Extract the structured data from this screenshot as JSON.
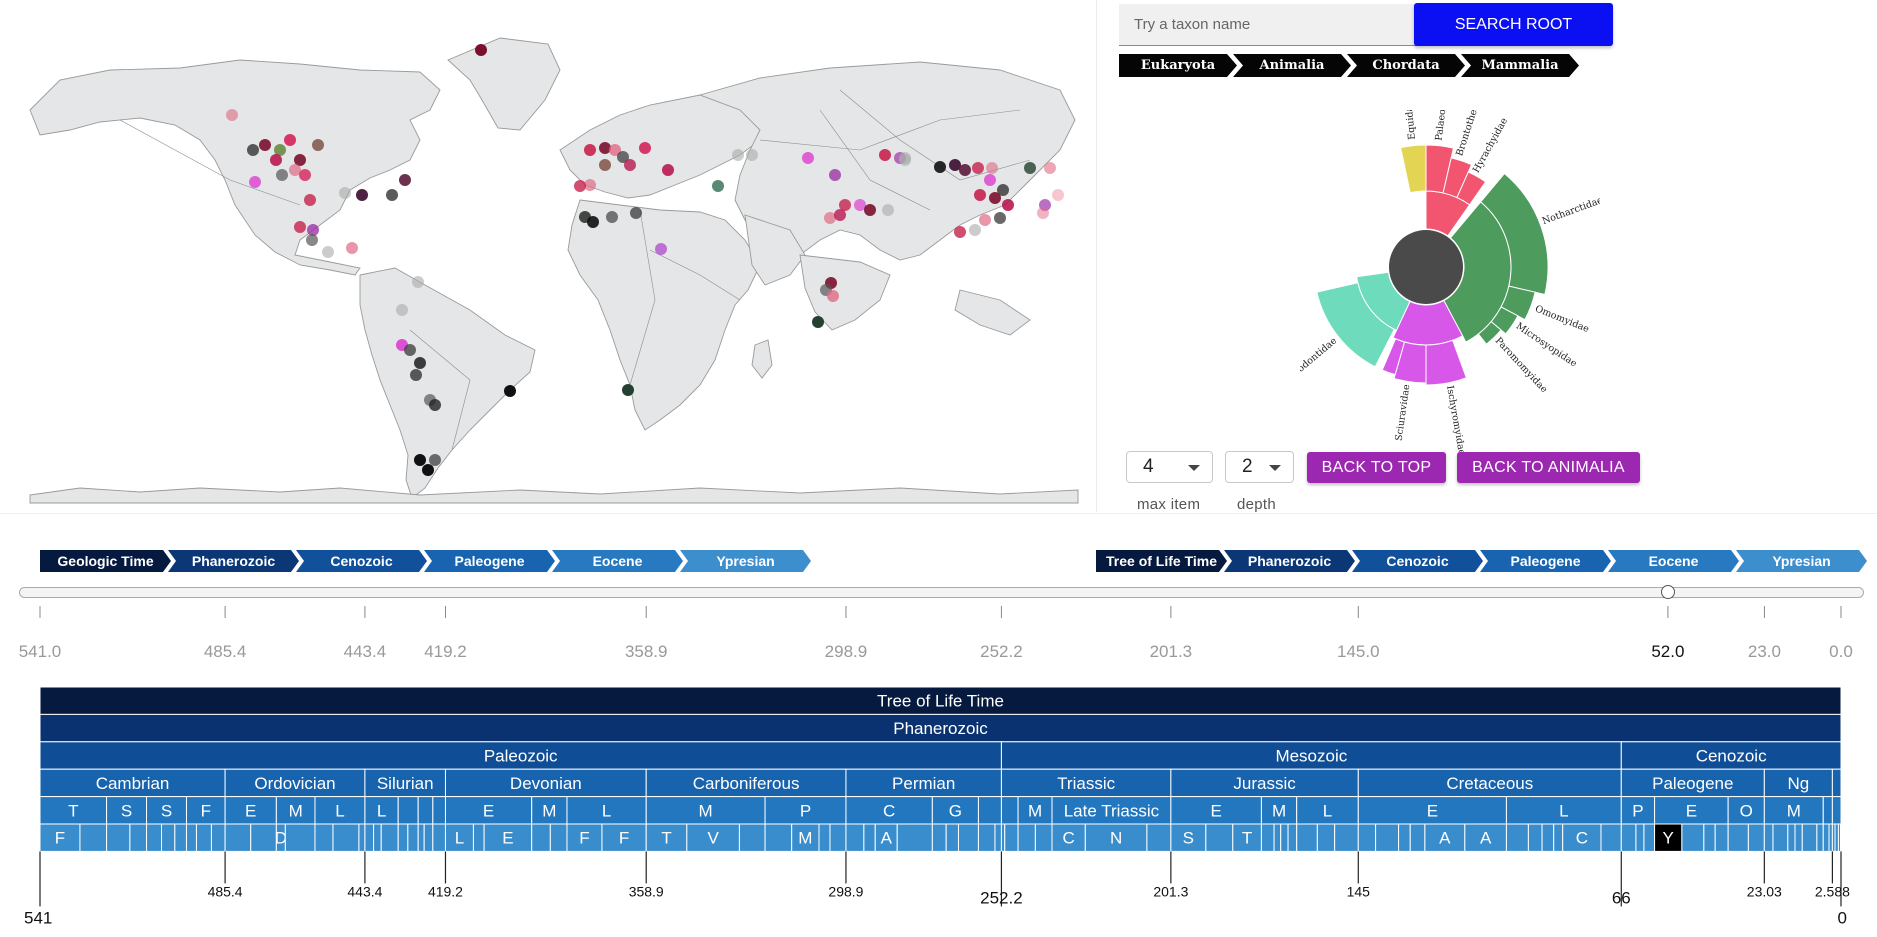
{
  "search": {
    "placeholder": "Try a taxon name",
    "button_label": "SEARCH ROOT"
  },
  "taxon_breadcrumb": [
    "Eukaryota",
    "Animalia",
    "Chordata",
    "Mammalia"
  ],
  "sunburst": {
    "labels": [
      "Equidae",
      "Palaeotheriidae",
      "Brontotheriidae",
      "Hyrachyidae",
      "Notharctidae",
      "Omomyidae",
      "Microsyopidae",
      "Paromomyidae",
      "Ischyromyidae",
      "Sciuravidae",
      "Hyopsodontidae"
    ],
    "colors": {
      "center": "#4a4a4a",
      "perissodactyla": "#f2556f",
      "equidae": "#e3d453",
      "primates": "#4e9b5e",
      "rodentia": "#d758e8",
      "condylarthra": "#6edcbc"
    }
  },
  "controls": {
    "max_item_value": "4",
    "max_item_label": "max item",
    "depth_value": "2",
    "depth_label": "depth",
    "back_to_top_label": "BACK TO TOP",
    "back_to_animalia_label": "BACK TO ANIMALIA"
  },
  "left_time_breadcrumb": [
    {
      "label": "Geologic Time",
      "color": "#061a3f"
    },
    {
      "label": "Phanerozoic",
      "color": "#0b3777"
    },
    {
      "label": "Cenozoic",
      "color": "#11509a"
    },
    {
      "label": "Paleogene",
      "color": "#1964b0"
    },
    {
      "label": "Eocene",
      "color": "#2779c0"
    },
    {
      "label": "Ypresian",
      "color": "#3d8ecc"
    }
  ],
  "right_time_breadcrumb": [
    {
      "label": "Tree of Life Time",
      "color": "#061a3f"
    },
    {
      "label": "Phanerozoic",
      "color": "#0b3777"
    },
    {
      "label": "Cenozoic",
      "color": "#11509a"
    },
    {
      "label": "Paleogene",
      "color": "#1964b0"
    },
    {
      "label": "Eocene",
      "color": "#2779c0"
    },
    {
      "label": "Ypresian",
      "color": "#3d8ecc"
    }
  ],
  "slider": {
    "value_ma": 52.0
  },
  "axis_ticks": [
    "541.0",
    "485.4",
    "443.4",
    "419.2",
    "358.9",
    "298.9",
    "252.2",
    "201.3",
    "145.0",
    "52.0",
    "23.0",
    "0.0"
  ],
  "axis_tick_values": [
    541,
    485.4,
    443.4,
    419.2,
    358.9,
    298.9,
    252.2,
    201.3,
    145,
    52,
    23,
    0
  ],
  "chart_data": {
    "type": "table",
    "title": "Tree of Life Time",
    "domain_ma": [
      541,
      0
    ],
    "colors": {
      "row0": "#061a3f",
      "row1": "#0b3270",
      "row2": "#0f4d96",
      "row3": "#1763ae",
      "row4": "#2377bf",
      "row5": "#3a8dcc",
      "selected": "#000000",
      "grid": "#ffffff"
    },
    "rows": [
      [
        {
          "label": "Tree of Life Time",
          "start": 541,
          "end": 0
        }
      ],
      [
        {
          "label": "Phanerozoic",
          "start": 541,
          "end": 0
        }
      ],
      [
        {
          "label": "Paleozoic",
          "start": 541,
          "end": 252.2
        },
        {
          "label": "Mesozoic",
          "start": 252.2,
          "end": 66
        },
        {
          "label": "Cenozoic",
          "start": 66,
          "end": 0
        }
      ],
      [
        {
          "label": "Cambrian",
          "start": 541,
          "end": 485.4
        },
        {
          "label": "Ordovician",
          "start": 485.4,
          "end": 443.4
        },
        {
          "label": "Silurian",
          "start": 443.4,
          "end": 419.2
        },
        {
          "label": "Devonian",
          "start": 419.2,
          "end": 358.9
        },
        {
          "label": "Carboniferous",
          "start": 358.9,
          "end": 298.9
        },
        {
          "label": "Permian",
          "start": 298.9,
          "end": 252.2
        },
        {
          "label": "Triassic",
          "start": 252.2,
          "end": 201.3
        },
        {
          "label": "Jurassic",
          "start": 201.3,
          "end": 145
        },
        {
          "label": "Cretaceous",
          "start": 145,
          "end": 66
        },
        {
          "label": "Paleogene",
          "start": 66,
          "end": 23.03
        },
        {
          "label": "Ng",
          "start": 23.03,
          "end": 2.588
        },
        {
          "label": "",
          "start": 2.588,
          "end": 0
        }
      ],
      [
        {
          "label": "T",
          "start": 541,
          "end": 521
        },
        {
          "label": "S",
          "start": 521,
          "end": 509
        },
        {
          "label": "S",
          "start": 509,
          "end": 497
        },
        {
          "label": "F",
          "start": 497,
          "end": 485.4
        },
        {
          "label": "E",
          "start": 485.4,
          "end": 470
        },
        {
          "label": "M",
          "start": 470,
          "end": 458.4
        },
        {
          "label": "L",
          "start": 458.4,
          "end": 443.4
        },
        {
          "label": "L",
          "start": 443.4,
          "end": 433.4
        },
        {
          "label": "",
          "start": 433.4,
          "end": 427.4
        },
        {
          "label": "",
          "start": 427.4,
          "end": 423
        },
        {
          "label": "",
          "start": 423,
          "end": 419.2
        },
        {
          "label": "E",
          "start": 419.2,
          "end": 393.3
        },
        {
          "label": "M",
          "start": 393.3,
          "end": 382.7
        },
        {
          "label": "L",
          "start": 382.7,
          "end": 358.9
        },
        {
          "label": "M",
          "start": 358.9,
          "end": 323.2
        },
        {
          "label": "P",
          "start": 323.2,
          "end": 298.9
        },
        {
          "label": "C",
          "start": 298.9,
          "end": 272.95
        },
        {
          "label": "G",
          "start": 272.95,
          "end": 259.1
        },
        {
          "label": "",
          "start": 259.1,
          "end": 252.2
        },
        {
          "label": "",
          "start": 252.2,
          "end": 247.2
        },
        {
          "label": "M",
          "start": 247.2,
          "end": 237
        },
        {
          "label": "Late Triassic",
          "start": 237,
          "end": 201.3
        },
        {
          "label": "E",
          "start": 201.3,
          "end": 174.1
        },
        {
          "label": "M",
          "start": 174.1,
          "end": 163.5
        },
        {
          "label": "L",
          "start": 163.5,
          "end": 145
        },
        {
          "label": "E",
          "start": 145,
          "end": 100.5
        },
        {
          "label": "L",
          "start": 100.5,
          "end": 66
        },
        {
          "label": "P",
          "start": 66,
          "end": 56
        },
        {
          "label": "E",
          "start": 56,
          "end": 33.9
        },
        {
          "label": "O",
          "start": 33.9,
          "end": 23.03
        },
        {
          "label": "M",
          "start": 23.03,
          "end": 5.333
        },
        {
          "label": "",
          "start": 5.333,
          "end": 2.588
        },
        {
          "label": "",
          "start": 2.588,
          "end": 0
        }
      ],
      [
        {
          "label": "F",
          "start": 541,
          "end": 529
        },
        {
          "label": "",
          "start": 529,
          "end": 521
        },
        {
          "label": "",
          "start": 521,
          "end": 514
        },
        {
          "label": "",
          "start": 514,
          "end": 509
        },
        {
          "label": "",
          "start": 509,
          "end": 504.5
        },
        {
          "label": "",
          "start": 504.5,
          "end": 500.5
        },
        {
          "label": "",
          "start": 500.5,
          "end": 497
        },
        {
          "label": "",
          "start": 497,
          "end": 494
        },
        {
          "label": "",
          "start": 494,
          "end": 489.5
        },
        {
          "label": "",
          "start": 489.5,
          "end": 485.4
        },
        {
          "label": "",
          "start": 485.4,
          "end": 477.7
        },
        {
          "label": "",
          "start": 477.7,
          "end": 470
        },
        {
          "label": "D",
          "start": 470,
          "end": 467.3
        },
        {
          "label": "",
          "start": 467.3,
          "end": 458.4
        },
        {
          "label": "",
          "start": 458.4,
          "end": 453
        },
        {
          "label": "",
          "start": 453,
          "end": 445.2
        },
        {
          "label": "",
          "start": 445.2,
          "end": 443.4
        },
        {
          "label": "",
          "start": 443.4,
          "end": 440.8
        },
        {
          "label": "",
          "start": 440.8,
          "end": 438.5
        },
        {
          "label": "",
          "start": 438.5,
          "end": 433.4
        },
        {
          "label": "",
          "start": 433.4,
          "end": 430.5
        },
        {
          "label": "",
          "start": 430.5,
          "end": 427.4
        },
        {
          "label": "",
          "start": 427.4,
          "end": 425.6
        },
        {
          "label": "",
          "start": 425.6,
          "end": 423
        },
        {
          "label": "",
          "start": 423,
          "end": 419.2
        },
        {
          "label": "L",
          "start": 419.2,
          "end": 410.8
        },
        {
          "label": "",
          "start": 410.8,
          "end": 407.6
        },
        {
          "label": "E",
          "start": 407.6,
          "end": 393.3
        },
        {
          "label": "",
          "start": 393.3,
          "end": 387.7
        },
        {
          "label": "",
          "start": 387.7,
          "end": 382.7
        },
        {
          "label": "F",
          "start": 382.7,
          "end": 372.2
        },
        {
          "label": "F",
          "start": 372.2,
          "end": 358.9
        },
        {
          "label": "T",
          "start": 358.9,
          "end": 346.7
        },
        {
          "label": "V",
          "start": 346.7,
          "end": 330.9
        },
        {
          "label": "",
          "start": 330.9,
          "end": 323.2
        },
        {
          "label": "",
          "start": 323.2,
          "end": 315.2
        },
        {
          "label": "M",
          "start": 315.2,
          "end": 307
        },
        {
          "label": "",
          "start": 307,
          "end": 303.7
        },
        {
          "label": "",
          "start": 303.7,
          "end": 298.9
        },
        {
          "label": "",
          "start": 298.9,
          "end": 293.52
        },
        {
          "label": "",
          "start": 293.52,
          "end": 290.1
        },
        {
          "label": "A",
          "start": 290.1,
          "end": 283.5
        },
        {
          "label": "",
          "start": 283.5,
          "end": 272.95
        },
        {
          "label": "",
          "start": 272.95,
          "end": 268.8
        },
        {
          "label": "",
          "start": 268.8,
          "end": 265.1
        },
        {
          "label": "",
          "start": 265.1,
          "end": 259.1
        },
        {
          "label": "",
          "start": 259.1,
          "end": 254.14
        },
        {
          "label": "",
          "start": 254.14,
          "end": 252.2
        },
        {
          "label": "",
          "start": 252.2,
          "end": 251.2
        },
        {
          "label": "",
          "start": 251.2,
          "end": 247.2
        },
        {
          "label": "",
          "start": 247.2,
          "end": 242
        },
        {
          "label": "",
          "start": 242,
          "end": 237
        },
        {
          "label": "C",
          "start": 237,
          "end": 227
        },
        {
          "label": "N",
          "start": 227,
          "end": 208.5
        },
        {
          "label": "",
          "start": 208.5,
          "end": 201.3
        },
        {
          "label": "S",
          "start": 201.3,
          "end": 190.8
        },
        {
          "label": "",
          "start": 190.8,
          "end": 182.7
        },
        {
          "label": "T",
          "start": 182.7,
          "end": 174.1
        },
        {
          "label": "",
          "start": 174.1,
          "end": 170.3
        },
        {
          "label": "",
          "start": 170.3,
          "end": 168.3
        },
        {
          "label": "",
          "start": 168.3,
          "end": 166.1
        },
        {
          "label": "",
          "start": 166.1,
          "end": 163.5
        },
        {
          "label": "",
          "start": 163.5,
          "end": 157.3
        },
        {
          "label": "",
          "start": 157.3,
          "end": 152.1
        },
        {
          "label": "",
          "start": 152.1,
          "end": 145
        },
        {
          "label": "",
          "start": 145,
          "end": 139.8
        },
        {
          "label": "",
          "start": 139.8,
          "end": 132.9
        },
        {
          "label": "",
          "start": 132.9,
          "end": 129.4
        },
        {
          "label": "",
          "start": 129.4,
          "end": 125
        },
        {
          "label": "A",
          "start": 125,
          "end": 113
        },
        {
          "label": "A",
          "start": 113,
          "end": 100.5
        },
        {
          "label": "",
          "start": 100.5,
          "end": 93.9
        },
        {
          "label": "",
          "start": 93.9,
          "end": 89.8
        },
        {
          "label": "",
          "start": 89.8,
          "end": 86.3
        },
        {
          "label": "",
          "start": 86.3,
          "end": 83.6
        },
        {
          "label": "C",
          "start": 83.6,
          "end": 72.1
        },
        {
          "label": "",
          "start": 72.1,
          "end": 66
        },
        {
          "label": "",
          "start": 66,
          "end": 61.6
        },
        {
          "label": "",
          "start": 61.6,
          "end": 59.2
        },
        {
          "label": "",
          "start": 59.2,
          "end": 56
        },
        {
          "label": "Y",
          "start": 56,
          "end": 47.8,
          "selected": true
        },
        {
          "label": "",
          "start": 47.8,
          "end": 41.2
        },
        {
          "label": "",
          "start": 41.2,
          "end": 37.8
        },
        {
          "label": "",
          "start": 37.8,
          "end": 33.9
        },
        {
          "label": "",
          "start": 33.9,
          "end": 27.82
        },
        {
          "label": "",
          "start": 27.82,
          "end": 23.03
        },
        {
          "label": "",
          "start": 23.03,
          "end": 20.44
        },
        {
          "label": "",
          "start": 20.44,
          "end": 15.97
        },
        {
          "label": "",
          "start": 15.97,
          "end": 13.82
        },
        {
          "label": "",
          "start": 13.82,
          "end": 11.63
        },
        {
          "label": "",
          "start": 11.63,
          "end": 7.246
        },
        {
          "label": "",
          "start": 7.246,
          "end": 5.333
        },
        {
          "label": "",
          "start": 5.333,
          "end": 3.6
        },
        {
          "label": "",
          "start": 3.6,
          "end": 2.588
        },
        {
          "label": "",
          "start": 2.588,
          "end": 1.8
        },
        {
          "label": "",
          "start": 1.8,
          "end": 0.774
        },
        {
          "label": "",
          "start": 0.774,
          "end": 0.129
        },
        {
          "label": "",
          "start": 0.129,
          "end": 0
        }
      ]
    ],
    "bottom_ticks": [
      {
        "value": 541,
        "label": "541",
        "major": true
      },
      {
        "value": 485.4,
        "label": "485.4"
      },
      {
        "value": 443.4,
        "label": "443.4"
      },
      {
        "value": 419.2,
        "label": "419.2"
      },
      {
        "value": 358.9,
        "label": "358.9"
      },
      {
        "value": 298.9,
        "label": "298.9"
      },
      {
        "value": 252.2,
        "label": "252.2",
        "major": true
      },
      {
        "value": 201.3,
        "label": "201.3"
      },
      {
        "value": 145,
        "label": "145"
      },
      {
        "value": 66,
        "label": "66",
        "major": true
      },
      {
        "value": 23.03,
        "label": "23.03"
      },
      {
        "value": 2.588,
        "label": "2.588"
      },
      {
        "value": 0,
        "label": "0",
        "major": true
      }
    ]
  }
}
